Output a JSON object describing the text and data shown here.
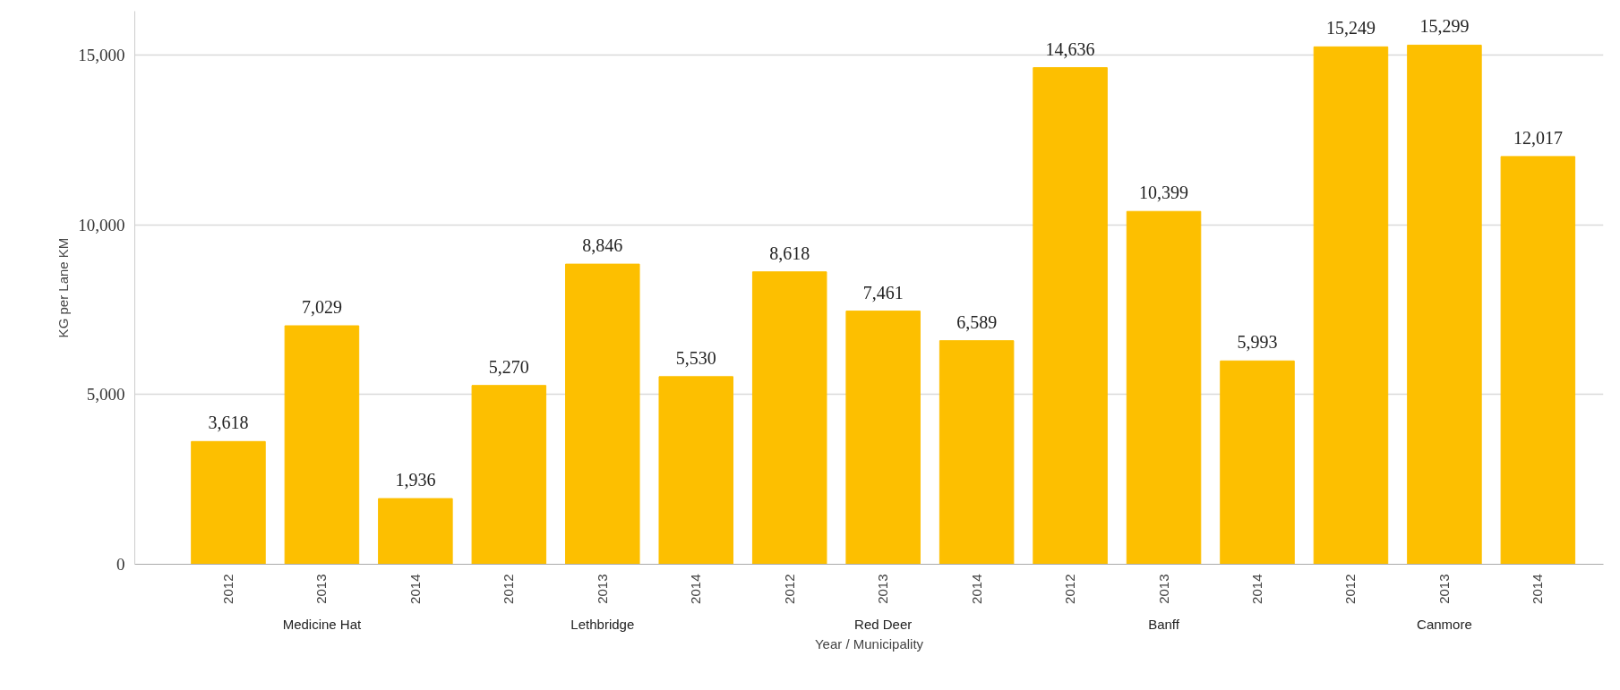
{
  "chart_data": {
    "type": "bar",
    "xlabel": "Year / Municipality",
    "ylabel": "KG per Lane KM",
    "categories": [
      "2012",
      "2013",
      "2014",
      "2012",
      "2013",
      "2014",
      "2012",
      "2013",
      "2014",
      "2012",
      "2013",
      "2014",
      "2012",
      "2013",
      "2014"
    ],
    "values": [
      3618,
      7029,
      1936,
      5270,
      8846,
      5530,
      8618,
      7461,
      6589,
      14636,
      10399,
      5993,
      15249,
      15299,
      12017
    ],
    "color": "#fdbf00",
    "annotations": [
      "Medicine Hat",
      "Lethbridge",
      "Red Deer",
      "Banff",
      "Canmore"
    ],
    "ylim": [
      0,
      16300
    ],
    "yticks": [
      0,
      {
        "value": 5000,
        "label": "5,000"
      },
      {
        "value": 10000,
        "label": "10,000"
      },
      {
        "value": 15000,
        "label": "15,000"
      }
    ],
    "value_labels": [
      "3,618",
      "7,029",
      "1,936",
      "5,270",
      "8,846",
      "5,530",
      "8,618",
      "7,461",
      "6,589",
      "14,636",
      "10,399",
      "5,993",
      "15,249",
      "15,299",
      "12,017"
    ],
    "grid": "y"
  }
}
